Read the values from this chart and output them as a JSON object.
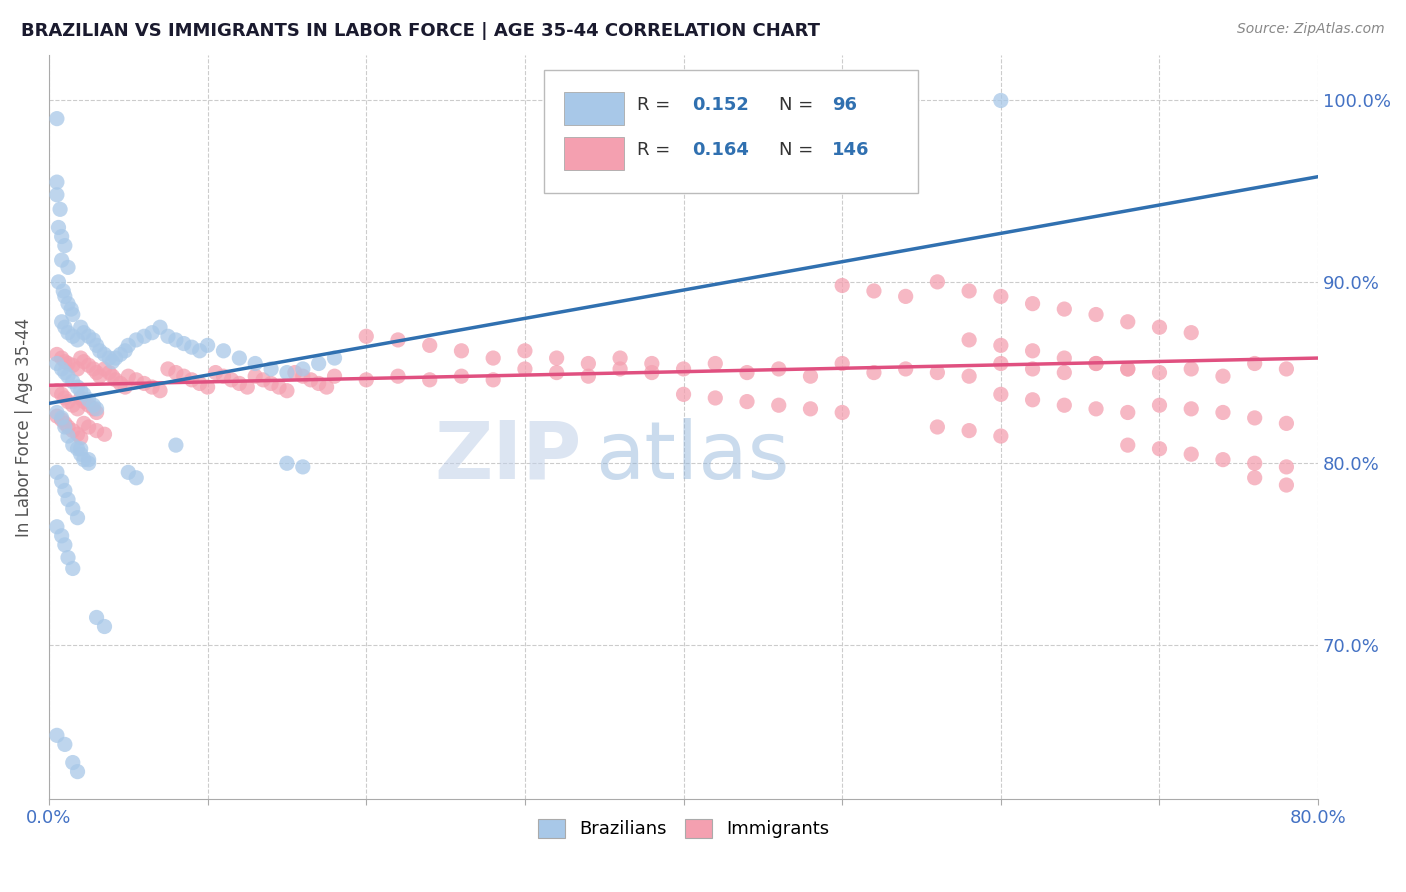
{
  "title": "BRAZILIAN VS IMMIGRANTS IN LABOR FORCE | AGE 35-44 CORRELATION CHART",
  "source_text": "Source: ZipAtlas.com",
  "ylabel": "In Labor Force | Age 35-44",
  "xmin": 0.0,
  "xmax": 0.8,
  "ymin": 0.615,
  "ymax": 1.025,
  "ytick_labels": [
    "70.0%",
    "80.0%",
    "90.0%",
    "100.0%"
  ],
  "ytick_values": [
    0.7,
    0.8,
    0.9,
    1.0
  ],
  "blue_color": "#a8c8e8",
  "pink_color": "#f4a0b0",
  "blue_line_color": "#3070b0",
  "pink_line_color": "#e05080",
  "blue_R": 0.152,
  "blue_N": 96,
  "pink_R": 0.164,
  "pink_N": 146,
  "legend_label_blue": "Brazilians",
  "legend_label_pink": "Immigrants",
  "watermark_zip": "ZIP",
  "watermark_atlas": "atlas",
  "title_color": "#1a1a2e",
  "axis_label_color": "#4472c4",
  "blue_line_x0": 0.0,
  "blue_line_y0": 0.833,
  "blue_line_x1": 0.8,
  "blue_line_y1": 0.958,
  "pink_line_x0": 0.0,
  "pink_line_y0": 0.843,
  "pink_line_x1": 0.8,
  "pink_line_y1": 0.858,
  "blue_scatter": [
    [
      0.005,
      0.99
    ],
    [
      0.005,
      0.955
    ],
    [
      0.005,
      0.948
    ],
    [
      0.007,
      0.94
    ],
    [
      0.006,
      0.93
    ],
    [
      0.008,
      0.925
    ],
    [
      0.01,
      0.92
    ],
    [
      0.008,
      0.912
    ],
    [
      0.012,
      0.908
    ],
    [
      0.006,
      0.9
    ],
    [
      0.009,
      0.895
    ],
    [
      0.01,
      0.892
    ],
    [
      0.012,
      0.888
    ],
    [
      0.014,
      0.885
    ],
    [
      0.015,
      0.882
    ],
    [
      0.008,
      0.878
    ],
    [
      0.01,
      0.875
    ],
    [
      0.012,
      0.872
    ],
    [
      0.015,
      0.87
    ],
    [
      0.018,
      0.868
    ],
    [
      0.02,
      0.875
    ],
    [
      0.022,
      0.872
    ],
    [
      0.025,
      0.87
    ],
    [
      0.028,
      0.868
    ],
    [
      0.03,
      0.865
    ],
    [
      0.032,
      0.862
    ],
    [
      0.035,
      0.86
    ],
    [
      0.038,
      0.858
    ],
    [
      0.04,
      0.856
    ],
    [
      0.042,
      0.858
    ],
    [
      0.045,
      0.86
    ],
    [
      0.048,
      0.862
    ],
    [
      0.05,
      0.865
    ],
    [
      0.055,
      0.868
    ],
    [
      0.06,
      0.87
    ],
    [
      0.065,
      0.872
    ],
    [
      0.07,
      0.875
    ],
    [
      0.075,
      0.87
    ],
    [
      0.08,
      0.868
    ],
    [
      0.085,
      0.866
    ],
    [
      0.09,
      0.864
    ],
    [
      0.095,
      0.862
    ],
    [
      0.1,
      0.865
    ],
    [
      0.11,
      0.862
    ],
    [
      0.12,
      0.858
    ],
    [
      0.13,
      0.855
    ],
    [
      0.14,
      0.852
    ],
    [
      0.15,
      0.85
    ],
    [
      0.16,
      0.852
    ],
    [
      0.17,
      0.855
    ],
    [
      0.18,
      0.858
    ],
    [
      0.005,
      0.855
    ],
    [
      0.008,
      0.852
    ],
    [
      0.01,
      0.85
    ],
    [
      0.012,
      0.848
    ],
    [
      0.015,
      0.845
    ],
    [
      0.018,
      0.842
    ],
    [
      0.02,
      0.84
    ],
    [
      0.022,
      0.838
    ],
    [
      0.025,
      0.835
    ],
    [
      0.028,
      0.832
    ],
    [
      0.03,
      0.83
    ],
    [
      0.005,
      0.828
    ],
    [
      0.008,
      0.825
    ],
    [
      0.01,
      0.82
    ],
    [
      0.012,
      0.815
    ],
    [
      0.015,
      0.81
    ],
    [
      0.018,
      0.808
    ],
    [
      0.02,
      0.805
    ],
    [
      0.022,
      0.802
    ],
    [
      0.025,
      0.8
    ],
    [
      0.005,
      0.795
    ],
    [
      0.008,
      0.79
    ],
    [
      0.01,
      0.785
    ],
    [
      0.012,
      0.78
    ],
    [
      0.015,
      0.775
    ],
    [
      0.018,
      0.77
    ],
    [
      0.005,
      0.765
    ],
    [
      0.008,
      0.76
    ],
    [
      0.01,
      0.755
    ],
    [
      0.012,
      0.748
    ],
    [
      0.015,
      0.742
    ],
    [
      0.02,
      0.808
    ],
    [
      0.025,
      0.802
    ],
    [
      0.05,
      0.795
    ],
    [
      0.055,
      0.792
    ],
    [
      0.15,
      0.8
    ],
    [
      0.16,
      0.798
    ],
    [
      0.08,
      0.81
    ],
    [
      0.03,
      0.715
    ],
    [
      0.035,
      0.71
    ],
    [
      0.005,
      0.65
    ],
    [
      0.01,
      0.645
    ],
    [
      0.015,
      0.635
    ],
    [
      0.018,
      0.63
    ],
    [
      0.6,
      1.0
    ]
  ],
  "pink_scatter": [
    [
      0.005,
      0.86
    ],
    [
      0.008,
      0.858
    ],
    [
      0.01,
      0.856
    ],
    [
      0.012,
      0.855
    ],
    [
      0.015,
      0.854
    ],
    [
      0.018,
      0.852
    ],
    [
      0.02,
      0.858
    ],
    [
      0.022,
      0.856
    ],
    [
      0.025,
      0.854
    ],
    [
      0.028,
      0.852
    ],
    [
      0.03,
      0.85
    ],
    [
      0.032,
      0.848
    ],
    [
      0.035,
      0.852
    ],
    [
      0.038,
      0.85
    ],
    [
      0.04,
      0.848
    ],
    [
      0.042,
      0.846
    ],
    [
      0.045,
      0.844
    ],
    [
      0.048,
      0.842
    ],
    [
      0.05,
      0.848
    ],
    [
      0.055,
      0.846
    ],
    [
      0.06,
      0.844
    ],
    [
      0.065,
      0.842
    ],
    [
      0.07,
      0.84
    ],
    [
      0.075,
      0.852
    ],
    [
      0.08,
      0.85
    ],
    [
      0.085,
      0.848
    ],
    [
      0.09,
      0.846
    ],
    [
      0.095,
      0.844
    ],
    [
      0.1,
      0.842
    ],
    [
      0.105,
      0.85
    ],
    [
      0.11,
      0.848
    ],
    [
      0.115,
      0.846
    ],
    [
      0.12,
      0.844
    ],
    [
      0.125,
      0.842
    ],
    [
      0.13,
      0.848
    ],
    [
      0.135,
      0.846
    ],
    [
      0.14,
      0.844
    ],
    [
      0.145,
      0.842
    ],
    [
      0.15,
      0.84
    ],
    [
      0.155,
      0.85
    ],
    [
      0.16,
      0.848
    ],
    [
      0.165,
      0.846
    ],
    [
      0.17,
      0.844
    ],
    [
      0.175,
      0.842
    ],
    [
      0.005,
      0.84
    ],
    [
      0.008,
      0.838
    ],
    [
      0.01,
      0.836
    ],
    [
      0.012,
      0.834
    ],
    [
      0.015,
      0.832
    ],
    [
      0.018,
      0.83
    ],
    [
      0.02,
      0.836
    ],
    [
      0.022,
      0.834
    ],
    [
      0.025,
      0.832
    ],
    [
      0.028,
      0.83
    ],
    [
      0.03,
      0.828
    ],
    [
      0.005,
      0.826
    ],
    [
      0.008,
      0.824
    ],
    [
      0.01,
      0.822
    ],
    [
      0.012,
      0.82
    ],
    [
      0.015,
      0.818
    ],
    [
      0.018,
      0.816
    ],
    [
      0.02,
      0.814
    ],
    [
      0.022,
      0.822
    ],
    [
      0.025,
      0.82
    ],
    [
      0.03,
      0.818
    ],
    [
      0.035,
      0.816
    ],
    [
      0.18,
      0.848
    ],
    [
      0.2,
      0.846
    ],
    [
      0.22,
      0.848
    ],
    [
      0.24,
      0.846
    ],
    [
      0.26,
      0.848
    ],
    [
      0.28,
      0.846
    ],
    [
      0.3,
      0.852
    ],
    [
      0.32,
      0.85
    ],
    [
      0.34,
      0.848
    ],
    [
      0.36,
      0.852
    ],
    [
      0.38,
      0.85
    ],
    [
      0.4,
      0.852
    ],
    [
      0.42,
      0.855
    ],
    [
      0.44,
      0.85
    ],
    [
      0.46,
      0.852
    ],
    [
      0.48,
      0.848
    ],
    [
      0.5,
      0.855
    ],
    [
      0.52,
      0.85
    ],
    [
      0.54,
      0.852
    ],
    [
      0.56,
      0.85
    ],
    [
      0.58,
      0.848
    ],
    [
      0.6,
      0.855
    ],
    [
      0.62,
      0.852
    ],
    [
      0.64,
      0.85
    ],
    [
      0.66,
      0.855
    ],
    [
      0.68,
      0.852
    ],
    [
      0.7,
      0.85
    ],
    [
      0.72,
      0.852
    ],
    [
      0.74,
      0.848
    ],
    [
      0.76,
      0.855
    ],
    [
      0.78,
      0.852
    ],
    [
      0.5,
      0.898
    ],
    [
      0.52,
      0.895
    ],
    [
      0.54,
      0.892
    ],
    [
      0.56,
      0.9
    ],
    [
      0.58,
      0.895
    ],
    [
      0.6,
      0.892
    ],
    [
      0.62,
      0.888
    ],
    [
      0.64,
      0.885
    ],
    [
      0.66,
      0.882
    ],
    [
      0.68,
      0.878
    ],
    [
      0.7,
      0.875
    ],
    [
      0.72,
      0.872
    ],
    [
      0.58,
      0.868
    ],
    [
      0.6,
      0.865
    ],
    [
      0.62,
      0.862
    ],
    [
      0.64,
      0.858
    ],
    [
      0.66,
      0.855
    ],
    [
      0.68,
      0.852
    ],
    [
      0.2,
      0.87
    ],
    [
      0.22,
      0.868
    ],
    [
      0.24,
      0.865
    ],
    [
      0.26,
      0.862
    ],
    [
      0.28,
      0.858
    ],
    [
      0.3,
      0.862
    ],
    [
      0.32,
      0.858
    ],
    [
      0.34,
      0.855
    ],
    [
      0.36,
      0.858
    ],
    [
      0.38,
      0.855
    ],
    [
      0.4,
      0.838
    ],
    [
      0.42,
      0.836
    ],
    [
      0.44,
      0.834
    ],
    [
      0.46,
      0.832
    ],
    [
      0.48,
      0.83
    ],
    [
      0.5,
      0.828
    ],
    [
      0.6,
      0.838
    ],
    [
      0.62,
      0.835
    ],
    [
      0.64,
      0.832
    ],
    [
      0.66,
      0.83
    ],
    [
      0.68,
      0.828
    ],
    [
      0.7,
      0.832
    ],
    [
      0.72,
      0.83
    ],
    [
      0.74,
      0.828
    ],
    [
      0.76,
      0.825
    ],
    [
      0.78,
      0.822
    ],
    [
      0.56,
      0.82
    ],
    [
      0.58,
      0.818
    ],
    [
      0.6,
      0.815
    ],
    [
      0.68,
      0.81
    ],
    [
      0.7,
      0.808
    ],
    [
      0.72,
      0.805
    ],
    [
      0.74,
      0.802
    ],
    [
      0.76,
      0.8
    ],
    [
      0.78,
      0.798
    ],
    [
      0.76,
      0.792
    ],
    [
      0.78,
      0.788
    ]
  ]
}
